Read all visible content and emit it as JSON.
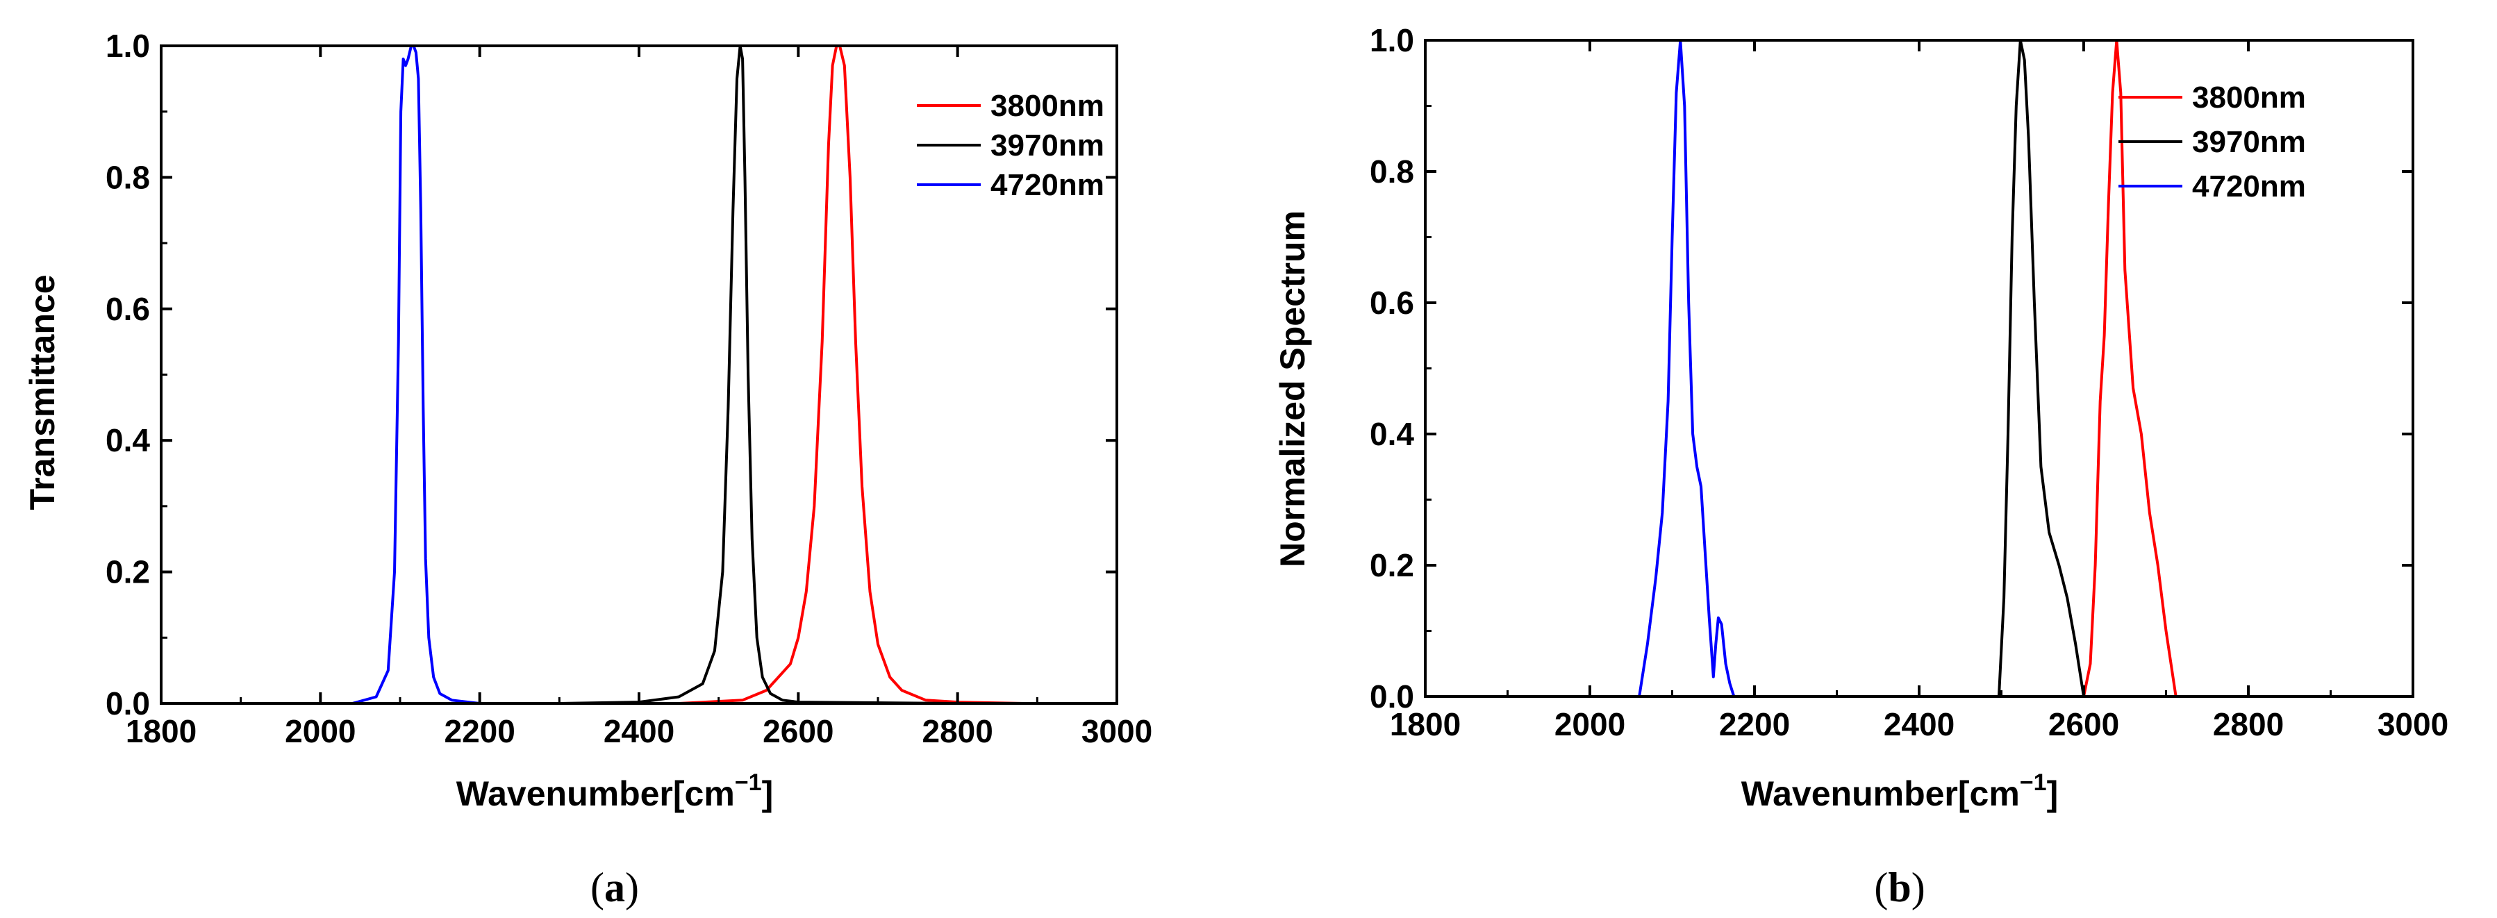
{
  "figure": {
    "caption_a": {
      "open": "(",
      "letter": "a",
      "close": ")"
    },
    "caption_b": {
      "open": "(",
      "letter": "b",
      "close": ")"
    }
  },
  "colors": {
    "3800nm": "#ff0000",
    "3970nm": "#000000",
    "4720nm": "#0000ff"
  },
  "chart_data": [
    {
      "id": "a",
      "type": "line",
      "title": "",
      "xlabel": "Wavenumber[cm",
      "xlabel_sup": "−1",
      "xlabel_close": "]",
      "ylabel": "Transmittance",
      "xlim": [
        1800,
        3000
      ],
      "ylim": [
        0,
        1.0
      ],
      "xticks": [
        "1800",
        "2000",
        "2200",
        "2400",
        "2600",
        "2800",
        "3000"
      ],
      "yticks": [
        "0.0",
        "0.2",
        "0.4",
        "0.6",
        "0.8",
        "1.0"
      ],
      "legend": [
        "3800nm",
        "3970nm",
        "4720nm"
      ],
      "legend_position": "top-right",
      "series": [
        {
          "name": "3800nm",
          "color": "#ff0000",
          "x": [
            2450,
            2530,
            2560,
            2590,
            2600,
            2610,
            2620,
            2630,
            2638,
            2643,
            2648,
            2652,
            2658,
            2665,
            2672,
            2680,
            2690,
            2700,
            2715,
            2730,
            2760,
            2800,
            2885
          ],
          "y": [
            0.0,
            0.005,
            0.02,
            0.06,
            0.1,
            0.17,
            0.3,
            0.55,
            0.85,
            0.97,
            1.0,
            1.0,
            0.97,
            0.8,
            0.55,
            0.33,
            0.17,
            0.09,
            0.04,
            0.02,
            0.005,
            0.002,
            0.0
          ]
        },
        {
          "name": "3970nm",
          "color": "#000000",
          "x": [
            2300,
            2400,
            2450,
            2480,
            2495,
            2505,
            2512,
            2518,
            2523,
            2527,
            2530,
            2533,
            2537,
            2542,
            2548,
            2555,
            2565,
            2580,
            2600,
            2800
          ],
          "y": [
            0.0,
            0.002,
            0.01,
            0.03,
            0.08,
            0.2,
            0.45,
            0.75,
            0.95,
            1.0,
            0.98,
            0.8,
            0.5,
            0.25,
            0.1,
            0.04,
            0.015,
            0.005,
            0.002,
            0.0
          ]
        },
        {
          "name": "4720nm",
          "color": "#0000ff",
          "x": [
            1920,
            2040,
            2070,
            2085,
            2093,
            2098,
            2101,
            2104,
            2107,
            2110,
            2114,
            2117,
            2120,
            2123,
            2126,
            2129,
            2132,
            2136,
            2142,
            2150,
            2165,
            2200,
            2330
          ],
          "y": [
            0.0,
            0.0,
            0.01,
            0.05,
            0.2,
            0.55,
            0.9,
            0.98,
            0.97,
            0.98,
            1.0,
            1.0,
            0.99,
            0.95,
            0.75,
            0.45,
            0.22,
            0.1,
            0.04,
            0.015,
            0.005,
            0.0,
            0.0
          ]
        }
      ]
    },
    {
      "id": "b",
      "type": "line",
      "title": "",
      "xlabel": "Wavenumber[cm",
      "xlabel_sup": "−1",
      "xlabel_close": "]",
      "ylabel": "Normalized Spectrum",
      "xlim": [
        1800,
        3000
      ],
      "ylim": [
        0,
        1.0
      ],
      "xticks": [
        "1800",
        "2000",
        "2200",
        "2400",
        "2600",
        "2800",
        "3000"
      ],
      "yticks": [
        "0.0",
        "0.2",
        "0.4",
        "0.6",
        "0.8",
        "1.0"
      ],
      "legend": [
        "3800nm",
        "3970nm",
        "4720nm"
      ],
      "legend_position": "top-right",
      "series": [
        {
          "name": "3800nm",
          "color": "#ff0000",
          "x": [
            2600,
            2608,
            2614,
            2620,
            2625,
            2630,
            2635,
            2640,
            2645,
            2650,
            2660,
            2670,
            2680,
            2690,
            2700,
            2712
          ],
          "y": [
            0.0,
            0.05,
            0.2,
            0.45,
            0.55,
            0.75,
            0.92,
            1.0,
            0.92,
            0.65,
            0.47,
            0.4,
            0.28,
            0.2,
            0.1,
            0.0
          ]
        },
        {
          "name": "3970nm",
          "color": "#000000",
          "x": [
            2497,
            2503,
            2508,
            2513,
            2518,
            2523,
            2528,
            2533,
            2540,
            2548,
            2558,
            2570,
            2580,
            2590,
            2600
          ],
          "y": [
            0.0,
            0.15,
            0.4,
            0.7,
            0.9,
            1.0,
            0.97,
            0.85,
            0.6,
            0.35,
            0.25,
            0.2,
            0.15,
            0.08,
            0.0
          ]
        },
        {
          "name": "4720nm",
          "color": "#0000ff",
          "x": [
            2060,
            2070,
            2080,
            2088,
            2095,
            2100,
            2105,
            2110,
            2115,
            2120,
            2125,
            2130,
            2135,
            2140,
            2145,
            2150,
            2153,
            2156,
            2160,
            2165,
            2170,
            2175
          ],
          "y": [
            0.0,
            0.08,
            0.18,
            0.28,
            0.45,
            0.7,
            0.92,
            1.0,
            0.9,
            0.6,
            0.4,
            0.35,
            0.32,
            0.22,
            0.12,
            0.03,
            0.08,
            0.12,
            0.11,
            0.05,
            0.02,
            0.0
          ]
        }
      ]
    }
  ]
}
